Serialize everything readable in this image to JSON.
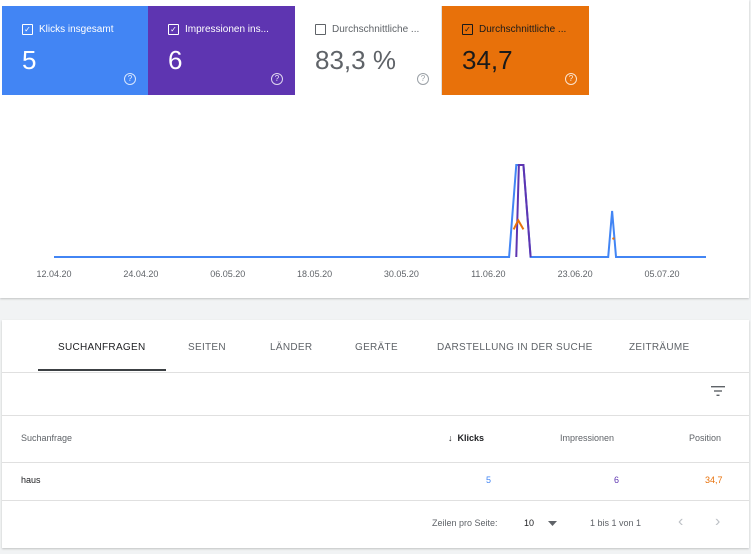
{
  "metrics": [
    {
      "label": "Klicks insgesamt",
      "value": "5",
      "checked": true,
      "color": "#4285f4"
    },
    {
      "label": "Impressionen ins...",
      "value": "6",
      "checked": true,
      "color": "#5e35b1"
    },
    {
      "label": "Durchschnittliche ...",
      "value": "83,3 %",
      "checked": false,
      "color": "#ffffff"
    },
    {
      "label": "Durchschnittliche ...",
      "value": "34,7",
      "checked": true,
      "color": "#e8710a"
    }
  ],
  "help_glyph": "?",
  "check_glyph": "✓",
  "chart_data": {
    "type": "line",
    "x_tick_labels": [
      "12.04.20",
      "24.04.20",
      "06.05.20",
      "18.05.20",
      "30.05.20",
      "11.06.20",
      "23.06.20",
      "05.07.20"
    ],
    "series": [
      {
        "color": "#4285f4",
        "points": [
          [
            0,
            0
          ],
          [
            0.698,
            0
          ],
          [
            0.709,
            1
          ],
          [
            0.72,
            1
          ],
          [
            0.731,
            0
          ],
          [
            0.85,
            0
          ],
          [
            0.856,
            0.5
          ],
          [
            0.862,
            0
          ],
          [
            1,
            0
          ]
        ]
      },
      {
        "color": "#5e35b1",
        "points": [
          [
            0.709,
            0
          ],
          [
            0.713,
            1
          ],
          [
            0.72,
            1
          ],
          [
            0.731,
            0
          ]
        ]
      },
      {
        "color": "#e8710a",
        "points": [
          [
            0.705,
            0.3
          ],
          [
            0.712,
            0.4
          ],
          [
            0.72,
            0.3
          ]
        ]
      }
    ]
  },
  "tabs": [
    "SUCHANFRAGEN",
    "SEITEN",
    "LÄNDER",
    "GERÄTE",
    "DARSTELLUNG IN DER SUCHE",
    "ZEITRÄUME"
  ],
  "table": {
    "headers": {
      "query": "Suchanfrage",
      "clicks": "Klicks",
      "impressions": "Impressionen",
      "position": "Position"
    },
    "sort_arrow": "↓",
    "rows": [
      {
        "query": "haus",
        "clicks": "5",
        "impressions": "6",
        "position": "34,7"
      }
    ]
  },
  "footer": {
    "rows_per_page_label": "Zeilen pro Seite:",
    "rows_per_page_value": "10",
    "range": "1 bis 1 von 1",
    "prev": "‹",
    "next": "›"
  }
}
